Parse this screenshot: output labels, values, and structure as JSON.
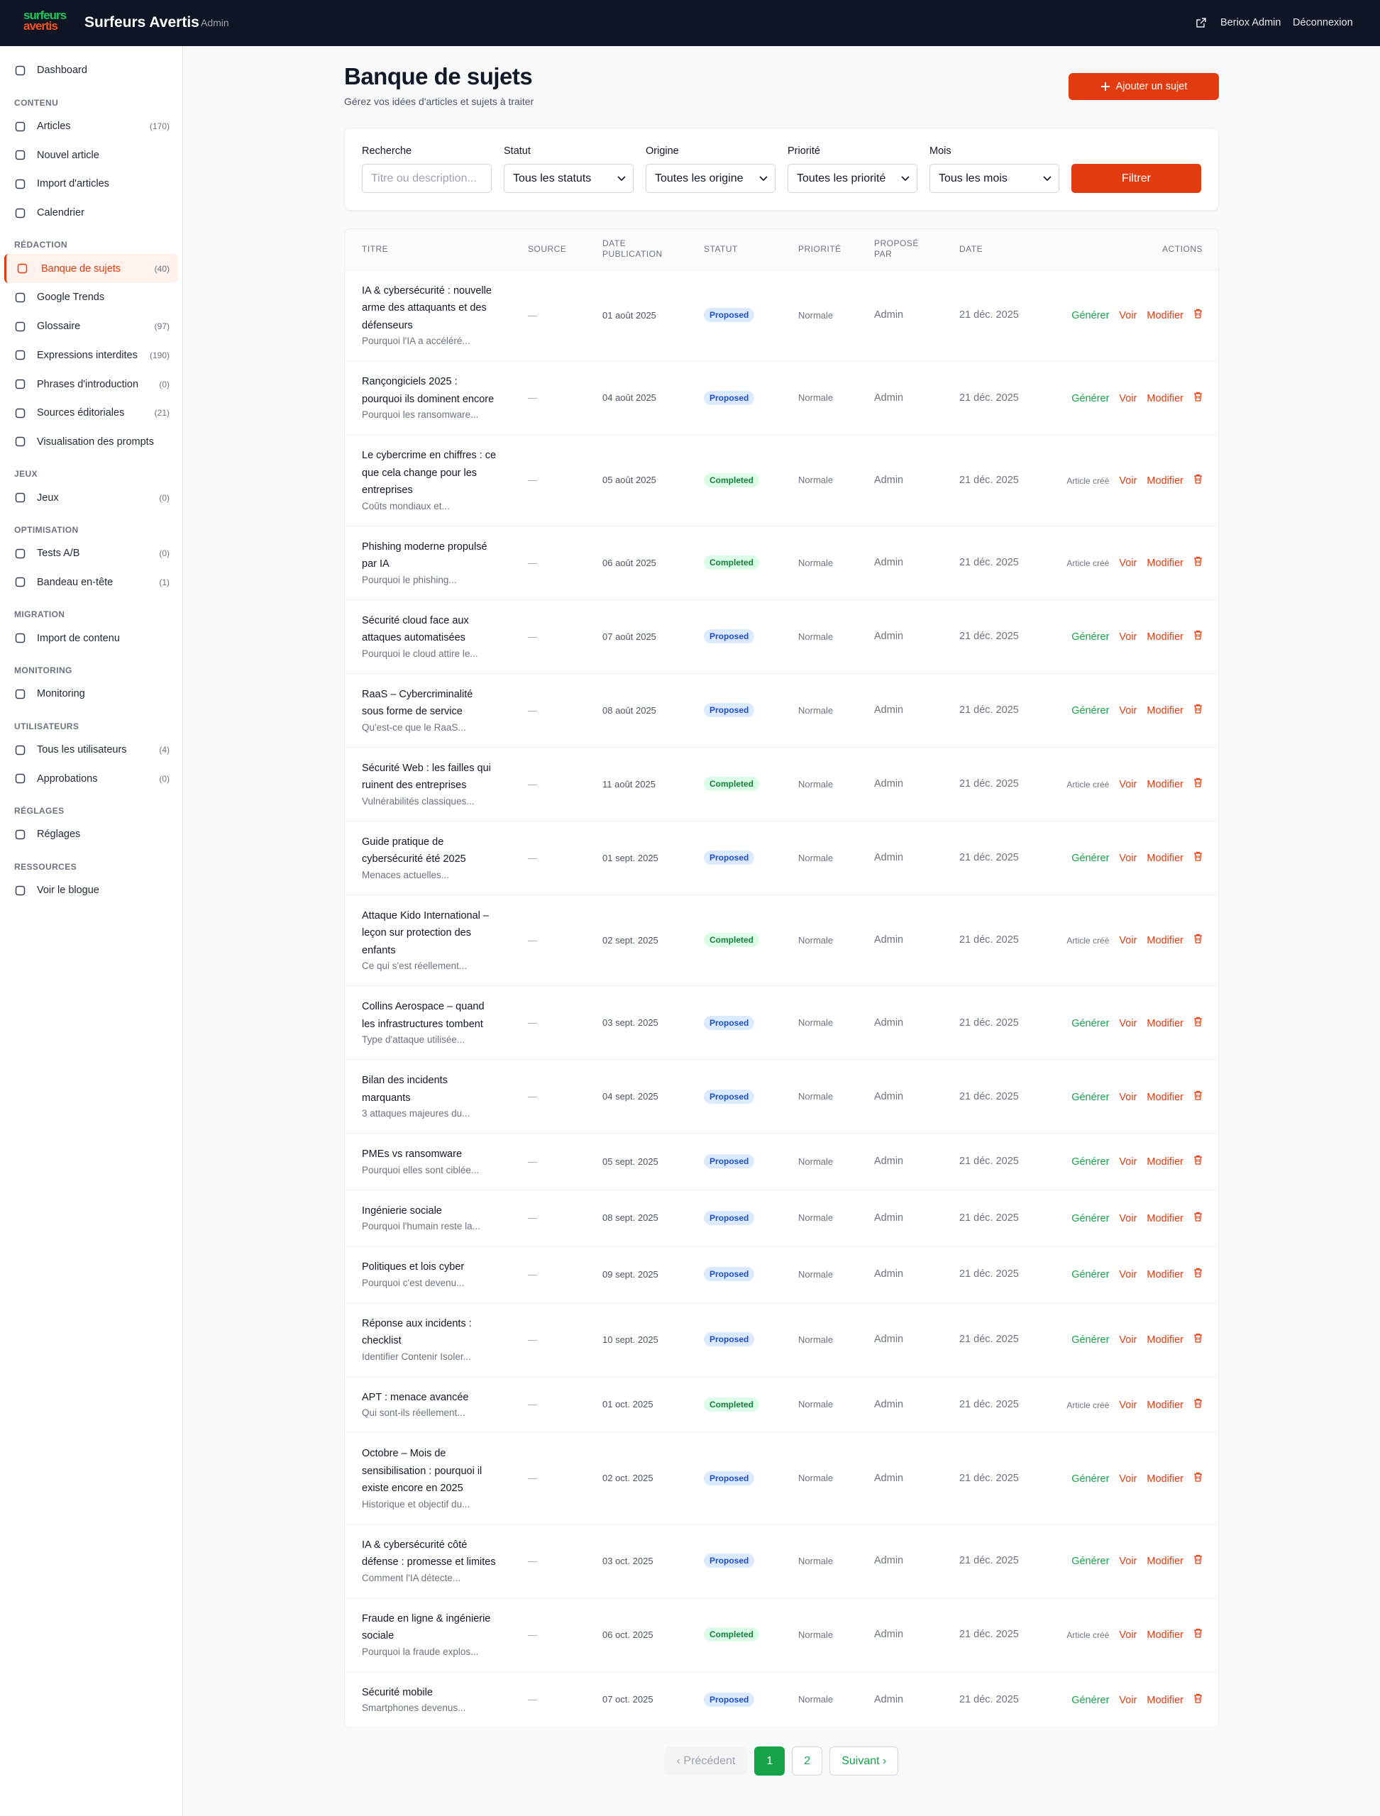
{
  "header": {
    "logo_top": "surfeurs",
    "logo_bottom": "avertis",
    "brand": "Surfeurs Avertis",
    "badge": "Admin",
    "user": "Beriox Admin",
    "logout": "Déconnexion"
  },
  "sidebar": {
    "groups": [
      {
        "items": [
          {
            "label": "Dashboard"
          }
        ]
      },
      {
        "title": "CONTENU",
        "items": [
          {
            "label": "Articles",
            "count": "(170)"
          },
          {
            "label": "Nouvel article"
          },
          {
            "label": "Import d'articles"
          },
          {
            "label": "Calendrier"
          }
        ]
      },
      {
        "title": "RÉDACTION",
        "items": [
          {
            "label": "Banque de sujets",
            "count": "(40)",
            "active": true
          },
          {
            "label": "Google Trends"
          },
          {
            "label": "Glossaire",
            "count": "(97)"
          },
          {
            "label": "Expressions interdites",
            "count": "(190)"
          },
          {
            "label": "Phrases d'introduction",
            "count": "(0)"
          },
          {
            "label": "Sources éditoriales",
            "count": "(21)"
          },
          {
            "label": "Visualisation des prompts"
          }
        ]
      },
      {
        "title": "JEUX",
        "items": [
          {
            "label": "Jeux",
            "count": "(0)"
          }
        ]
      },
      {
        "title": "OPTIMISATION",
        "items": [
          {
            "label": "Tests A/B",
            "count": "(0)"
          },
          {
            "label": "Bandeau en-tête",
            "count": "(1)"
          }
        ]
      },
      {
        "title": "MIGRATION",
        "items": [
          {
            "label": "Import de contenu"
          }
        ]
      },
      {
        "title": "MONITORING",
        "items": [
          {
            "label": "Monitoring"
          }
        ]
      },
      {
        "title": "UTILISATEURS",
        "items": [
          {
            "label": "Tous les utilisateurs",
            "count": "(4)"
          },
          {
            "label": "Approbations",
            "count": "(0)"
          }
        ]
      },
      {
        "title": "RÉGLAGES",
        "items": [
          {
            "label": "Réglages"
          }
        ]
      },
      {
        "title": "RESSOURCES",
        "items": [
          {
            "label": "Voir le blogue"
          }
        ]
      }
    ]
  },
  "page": {
    "title": "Banque de sujets",
    "subtitle": "Gérez vos idées d'articles et sujets à traiter",
    "add_button": "Ajouter un sujet"
  },
  "filters": {
    "fields": [
      {
        "label": "Recherche",
        "placeholder": "Titre ou description..."
      },
      {
        "label": "Statut",
        "value": "Tous les statuts"
      },
      {
        "label": "Origine",
        "value": "Toutes les origine"
      },
      {
        "label": "Priorité",
        "value": "Toutes les priorité"
      },
      {
        "label": "Mois",
        "value": "Tous les mois"
      }
    ],
    "button": "Filtrer"
  },
  "table": {
    "columns": [
      "TITRE",
      "SOURCE",
      "DATE PUBLICATION",
      "STATUT",
      "PRIORITÉ",
      "PROPOSÉ PAR",
      "DATE",
      "ACTIONS"
    ],
    "status_colors": {
      "Proposed": [
        "#dbeafe",
        "#1d4ed8"
      ],
      "Completed": [
        "#dcfce7",
        "#15803d"
      ]
    },
    "action_colors": {
      "Générer": [
        "#16a34a",
        14.5
      ],
      "Article créé": [
        "#6b7280",
        12
      ],
      "Voir": [
        "#e23b0f",
        14.5
      ],
      "Modifier": [
        "#e23b0f",
        14.5
      ]
    },
    "rows": [
      {
        "title": "IA & cybersécurité : nouvelle arme des attaquants et des défenseurs",
        "excerpt": "Pourquoi l'IA a accéléré...",
        "source": "—",
        "publication": "01 août 2025",
        "status": "Proposed",
        "priority": "Normale",
        "proposed_by": "Admin",
        "date": "21 déc. 2025",
        "actions": [
          "Générer",
          "Voir",
          "Modifier"
        ]
      },
      {
        "title": "Rançongiciels 2025 : pourquoi ils dominent encore",
        "excerpt": "Pourquoi les ransomware...",
        "source": "—",
        "publication": "04 août 2025",
        "status": "Proposed",
        "priority": "Normale",
        "proposed_by": "Admin",
        "date": "21 déc. 2025",
        "actions": [
          "Générer",
          "Voir",
          "Modifier"
        ]
      },
      {
        "title": "Le cybercrime en chiffres : ce que cela change pour les entreprises",
        "excerpt": "Coûts mondiaux et...",
        "source": "—",
        "publication": "05 août 2025",
        "status": "Completed",
        "priority": "Normale",
        "proposed_by": "Admin",
        "date": "21 déc. 2025",
        "actions": [
          "Article créé",
          "Voir",
          "Modifier"
        ]
      },
      {
        "title": "Phishing moderne propulsé par IA",
        "excerpt": "Pourquoi le phishing...",
        "source": "—",
        "publication": "06 août 2025",
        "status": "Completed",
        "priority": "Normale",
        "proposed_by": "Admin",
        "date": "21 déc. 2025",
        "actions": [
          "Article créé",
          "Voir",
          "Modifier"
        ]
      },
      {
        "title": "Sécurité cloud face aux attaques automatisées",
        "excerpt": "Pourquoi le cloud attire le...",
        "source": "—",
        "publication": "07 août 2025",
        "status": "Proposed",
        "priority": "Normale",
        "proposed_by": "Admin",
        "date": "21 déc. 2025",
        "actions": [
          "Générer",
          "Voir",
          "Modifier"
        ]
      },
      {
        "title": "RaaS – Cybercriminalité sous forme de service",
        "excerpt": "Qu'est-ce que le RaaS...",
        "source": "—",
        "publication": "08 août 2025",
        "status": "Proposed",
        "priority": "Normale",
        "proposed_by": "Admin",
        "date": "21 déc. 2025",
        "actions": [
          "Générer",
          "Voir",
          "Modifier"
        ]
      },
      {
        "title": "Sécurité Web : les failles qui ruinent des entreprises",
        "excerpt": "Vulnérabilités classiques...",
        "source": "—",
        "publication": "11 août 2025",
        "status": "Completed",
        "priority": "Normale",
        "proposed_by": "Admin",
        "date": "21 déc. 2025",
        "actions": [
          "Article créé",
          "Voir",
          "Modifier"
        ]
      },
      {
        "title": "Guide pratique de cybersécurité été 2025",
        "excerpt": "Menaces actuelles...",
        "source": "—",
        "publication": "01 sept. 2025",
        "status": "Proposed",
        "priority": "Normale",
        "proposed_by": "Admin",
        "date": "21 déc. 2025",
        "actions": [
          "Générer",
          "Voir",
          "Modifier"
        ]
      },
      {
        "title": "Attaque Kido International – leçon sur protection des enfants",
        "excerpt": "Ce qui s'est réellement...",
        "source": "—",
        "publication": "02 sept. 2025",
        "status": "Completed",
        "priority": "Normale",
        "proposed_by": "Admin",
        "date": "21 déc. 2025",
        "actions": [
          "Article créé",
          "Voir",
          "Modifier"
        ]
      },
      {
        "title": "Collins Aerospace – quand les infrastructures tombent",
        "excerpt": "Type d'attaque utilisée...",
        "source": "—",
        "publication": "03 sept. 2025",
        "status": "Proposed",
        "priority": "Normale",
        "proposed_by": "Admin",
        "date": "21 déc. 2025",
        "actions": [
          "Générer",
          "Voir",
          "Modifier"
        ]
      },
      {
        "title": "Bilan des incidents marquants",
        "excerpt": "3 attaques majeures du...",
        "source": "—",
        "publication": "04 sept. 2025",
        "status": "Proposed",
        "priority": "Normale",
        "proposed_by": "Admin",
        "date": "21 déc. 2025",
        "actions": [
          "Générer",
          "Voir",
          "Modifier"
        ]
      },
      {
        "title": "PMEs vs ransomware",
        "excerpt": "Pourquoi elles sont ciblée...",
        "source": "—",
        "publication": "05 sept. 2025",
        "status": "Proposed",
        "priority": "Normale",
        "proposed_by": "Admin",
        "date": "21 déc. 2025",
        "actions": [
          "Générer",
          "Voir",
          "Modifier"
        ]
      },
      {
        "title": "Ingénierie sociale",
        "excerpt": "Pourquoi l'humain reste la...",
        "source": "—",
        "publication": "08 sept. 2025",
        "status": "Proposed",
        "priority": "Normale",
        "proposed_by": "Admin",
        "date": "21 déc. 2025",
        "actions": [
          "Générer",
          "Voir",
          "Modifier"
        ]
      },
      {
        "title": "Politiques et lois cyber",
        "excerpt": "Pourquoi c'est devenu...",
        "source": "—",
        "publication": "09 sept. 2025",
        "status": "Proposed",
        "priority": "Normale",
        "proposed_by": "Admin",
        "date": "21 déc. 2025",
        "actions": [
          "Générer",
          "Voir",
          "Modifier"
        ]
      },
      {
        "title": "Réponse aux incidents : checklist",
        "excerpt": "Identifier Contenir Isoler...",
        "source": "—",
        "publication": "10 sept. 2025",
        "status": "Proposed",
        "priority": "Normale",
        "proposed_by": "Admin",
        "date": "21 déc. 2025",
        "actions": [
          "Générer",
          "Voir",
          "Modifier"
        ]
      },
      {
        "title": "APT : menace avancée",
        "excerpt": "Qui sont-ils réellement...",
        "source": "—",
        "publication": "01 oct. 2025",
        "status": "Completed",
        "priority": "Normale",
        "proposed_by": "Admin",
        "date": "21 déc. 2025",
        "actions": [
          "Article créé",
          "Voir",
          "Modifier"
        ]
      },
      {
        "title": "Octobre – Mois de sensibilisation : pourquoi il existe encore en 2025",
        "excerpt": "Historique et objectif du...",
        "source": "—",
        "publication": "02 oct. 2025",
        "status": "Proposed",
        "priority": "Normale",
        "proposed_by": "Admin",
        "date": "21 déc. 2025",
        "actions": [
          "Générer",
          "Voir",
          "Modifier"
        ]
      },
      {
        "title": "IA & cybersécurité côté défense : promesse et limites",
        "excerpt": "Comment l'IA détecte...",
        "source": "—",
        "publication": "03 oct. 2025",
        "status": "Proposed",
        "priority": "Normale",
        "proposed_by": "Admin",
        "date": "21 déc. 2025",
        "actions": [
          "Générer",
          "Voir",
          "Modifier"
        ]
      },
      {
        "title": "Fraude en ligne & ingénierie sociale",
        "excerpt": "Pourquoi la fraude explos...",
        "source": "—",
        "publication": "06 oct. 2025",
        "status": "Completed",
        "priority": "Normale",
        "proposed_by": "Admin",
        "date": "21 déc. 2025",
        "actions": [
          "Article créé",
          "Voir",
          "Modifier"
        ]
      },
      {
        "title": "Sécurité mobile",
        "excerpt": "Smartphones devenus...",
        "source": "—",
        "publication": "07 oct. 2025",
        "status": "Proposed",
        "priority": "Normale",
        "proposed_by": "Admin",
        "date": "21 déc. 2025",
        "actions": [
          "Générer",
          "Voir",
          "Modifier"
        ]
      }
    ]
  },
  "pagination": {
    "prev": "‹ Précédent",
    "pages": [
      "1",
      "2"
    ],
    "next": "Suivant ›"
  }
}
